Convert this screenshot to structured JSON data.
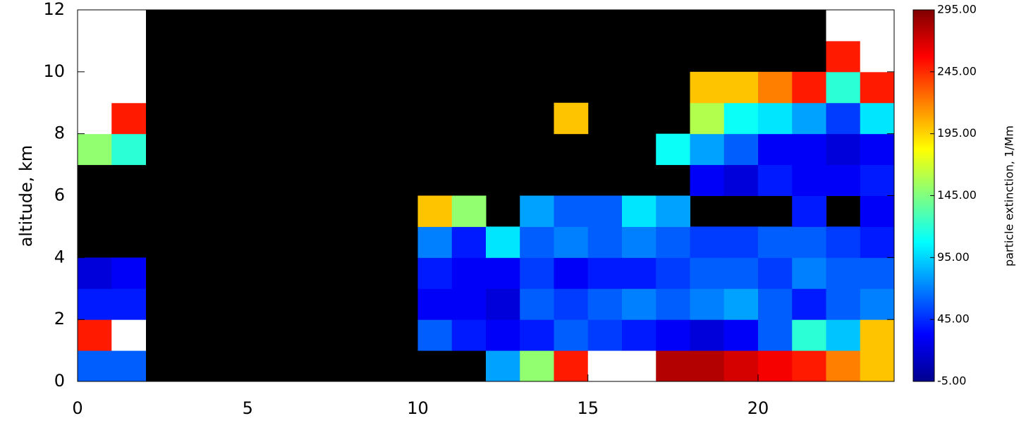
{
  "chart_data": {
    "type": "heatmap",
    "ylabel": "altitude, km",
    "colorbar_label": "particle extinction, 1/Mm",
    "xbins": [
      0,
      1,
      2,
      3,
      4,
      5,
      6,
      7,
      8,
      9,
      10,
      11,
      12,
      13,
      14,
      15,
      16,
      17,
      18,
      19,
      20,
      21,
      22,
      23,
      24
    ],
    "ybins": [
      0,
      1,
      2,
      3,
      4,
      5,
      6,
      7,
      8,
      9,
      10,
      11,
      12
    ],
    "xlim": [
      0,
      24
    ],
    "xticks": [
      0,
      5,
      10,
      15,
      20
    ],
    "ylim": [
      0,
      12
    ],
    "yticks": [
      0,
      2,
      4,
      6,
      8,
      10,
      12
    ],
    "clim": [
      -5,
      295
    ],
    "cticks": [
      {
        "value": -5,
        "label": "-5.00"
      },
      {
        "value": 45,
        "label": "45.00"
      },
      {
        "value": 95,
        "label": "95.00"
      },
      {
        "value": 145,
        "label": "145.00"
      },
      {
        "value": 195,
        "label": "195.00"
      },
      {
        "value": 245,
        "label": "245.00"
      },
      {
        "value": 295,
        "label": "295.00"
      }
    ],
    "colormap": [
      "#00008f",
      "#0000ff",
      "#0080ff",
      "#00ffff",
      "#80ff80",
      "#ffff00",
      "#ff8000",
      "#ff0000",
      "#800000"
    ],
    "over_color": "#ffffff",
    "missing_color": "#000000",
    "z": [
      [
        60,
        60,
        null,
        null,
        null,
        null,
        null,
        null,
        null,
        null,
        null,
        null,
        80,
        150,
        250,
        300,
        300,
        280,
        280,
        270,
        260,
        250,
        220,
        200
      ],
      [
        250,
        300,
        null,
        null,
        null,
        null,
        null,
        null,
        null,
        null,
        60,
        40,
        30,
        40,
        60,
        50,
        40,
        30,
        20,
        30,
        60,
        120,
        90,
        200
      ],
      [
        40,
        40,
        null,
        null,
        null,
        null,
        null,
        null,
        null,
        null,
        30,
        30,
        20,
        60,
        50,
        60,
        70,
        60,
        70,
        80,
        60,
        40,
        60,
        70
      ],
      [
        20,
        30,
        null,
        null,
        null,
        null,
        null,
        null,
        null,
        null,
        40,
        30,
        30,
        50,
        30,
        40,
        40,
        50,
        60,
        60,
        50,
        70,
        60,
        60
      ],
      [
        null,
        null,
        null,
        null,
        null,
        null,
        null,
        null,
        null,
        null,
        70,
        40,
        100,
        60,
        70,
        60,
        70,
        60,
        50,
        50,
        60,
        60,
        50,
        40
      ],
      [
        null,
        null,
        null,
        null,
        null,
        null,
        null,
        null,
        null,
        null,
        200,
        150,
        null,
        80,
        60,
        60,
        100,
        80,
        null,
        null,
        null,
        40,
        null,
        30
      ],
      [
        null,
        null,
        null,
        null,
        null,
        null,
        null,
        null,
        null,
        null,
        null,
        null,
        null,
        null,
        null,
        null,
        null,
        null,
        30,
        20,
        40,
        30,
        30,
        40
      ],
      [
        150,
        120,
        null,
        null,
        null,
        null,
        null,
        null,
        null,
        null,
        null,
        null,
        null,
        null,
        null,
        null,
        null,
        110,
        80,
        60,
        30,
        30,
        20,
        30
      ],
      [
        300,
        250,
        null,
        null,
        null,
        null,
        null,
        null,
        null,
        null,
        null,
        null,
        null,
        null,
        200,
        null,
        null,
        null,
        160,
        110,
        100,
        80,
        50,
        100
      ],
      [
        300,
        300,
        null,
        null,
        null,
        null,
        null,
        null,
        null,
        null,
        null,
        null,
        null,
        null,
        null,
        null,
        null,
        null,
        200,
        200,
        220,
        250,
        120,
        250
      ],
      [
        300,
        300,
        null,
        null,
        null,
        null,
        null,
        null,
        null,
        null,
        null,
        null,
        null,
        null,
        null,
        null,
        null,
        null,
        null,
        null,
        null,
        null,
        250,
        300
      ],
      [
        300,
        300,
        null,
        null,
        null,
        null,
        null,
        null,
        null,
        null,
        null,
        null,
        null,
        null,
        null,
        null,
        null,
        null,
        null,
        null,
        null,
        null,
        300,
        300
      ]
    ]
  }
}
